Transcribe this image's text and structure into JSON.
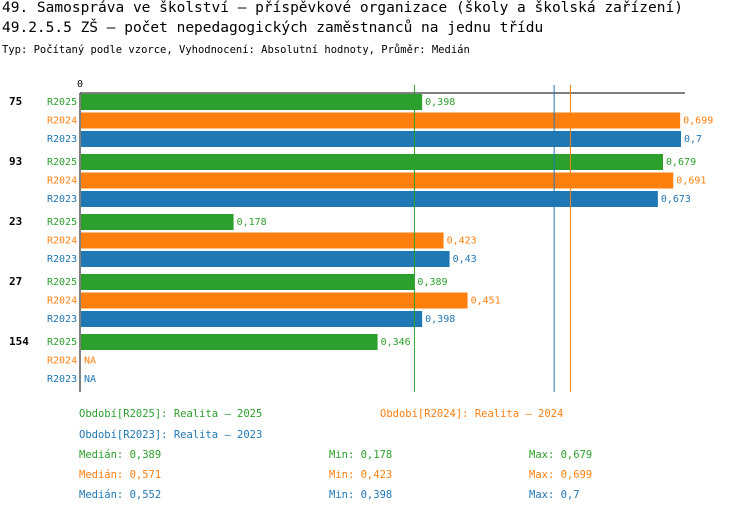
{
  "header": {
    "title": "49. Samospráva ve školství – příspěvkové organizace (školy a školská zařízení)",
    "subtitle": "49.2.5.5 ZŠ – počet nepedagogických zaměstnanců na jednu třídu",
    "info": "Typ: Počítaný podle vzorce, Vyhodnocení: Absolutní hodnoty, Průměr: Medián"
  },
  "chart_data": {
    "type": "bar",
    "orientation": "horizontal",
    "axis_zero_label": "0",
    "xlim": [
      0,
      0.7
    ],
    "colors": {
      "R2025": "#2ca02c",
      "R2024": "#ff7f0e",
      "R2023": "#1f77b4"
    },
    "groups": [
      {
        "label": "75",
        "bars": [
          {
            "series": "R2025",
            "value": 0.398,
            "label": "0,398"
          },
          {
            "series": "R2024",
            "value": 0.699,
            "label": "0,699"
          },
          {
            "series": "R2023",
            "value": 0.7,
            "label": "0,7"
          }
        ]
      },
      {
        "label": "93",
        "bars": [
          {
            "series": "R2025",
            "value": 0.679,
            "label": "0,679"
          },
          {
            "series": "R2024",
            "value": 0.691,
            "label": "0,691"
          },
          {
            "series": "R2023",
            "value": 0.673,
            "label": "0,673"
          }
        ]
      },
      {
        "label": "23",
        "bars": [
          {
            "series": "R2025",
            "value": 0.178,
            "label": "0,178"
          },
          {
            "series": "R2024",
            "value": 0.423,
            "label": "0,423"
          },
          {
            "series": "R2023",
            "value": 0.43,
            "label": "0,43"
          }
        ]
      },
      {
        "label": "27",
        "bars": [
          {
            "series": "R2025",
            "value": 0.389,
            "label": "0,389"
          },
          {
            "series": "R2024",
            "value": 0.451,
            "label": "0,451"
          },
          {
            "series": "R2023",
            "value": 0.398,
            "label": "0,398"
          }
        ]
      },
      {
        "label": "154",
        "bars": [
          {
            "series": "R2025",
            "value": 0.346,
            "label": "0,346"
          },
          {
            "series": "R2024",
            "value": null,
            "label": "NA"
          },
          {
            "series": "R2023",
            "value": null,
            "label": "NA"
          }
        ]
      }
    ],
    "medians": [
      {
        "series": "R2025",
        "value": 0.389
      },
      {
        "series": "R2024",
        "value": 0.571
      },
      {
        "series": "R2023",
        "value": 0.552
      }
    ]
  },
  "legend": {
    "periods": [
      {
        "series": "R2025",
        "text": "Období[R2025]: Realita – 2025"
      },
      {
        "series": "R2024",
        "text": "Období[R2024]: Realita – 2024"
      },
      {
        "series": "R2023",
        "text": "Období[R2023]: Realita – 2023"
      }
    ],
    "stats": [
      {
        "series": "R2025",
        "median": "Medián: 0,389",
        "min": "Min: 0,178",
        "max": "Max: 0,679"
      },
      {
        "series": "R2024",
        "median": "Medián: 0,571",
        "min": "Min: 0,423",
        "max": "Max: 0,699"
      },
      {
        "series": "R2023",
        "median": "Medián: 0,552",
        "min": "Min: 0,398",
        "max": "Max: 0,7"
      }
    ]
  }
}
